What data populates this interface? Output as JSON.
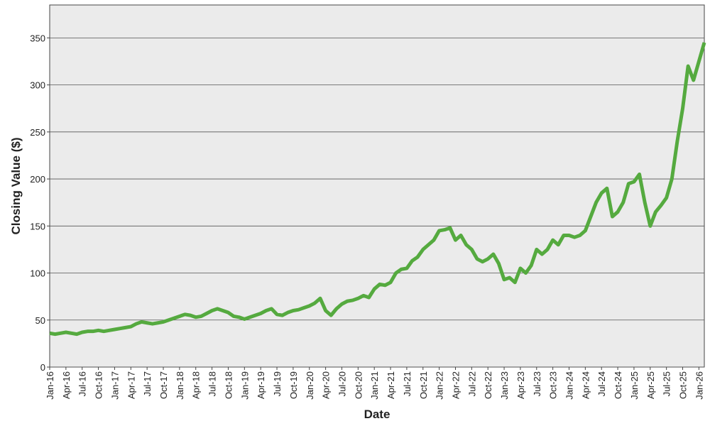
{
  "chart_data": {
    "type": "line",
    "x_label": "Date",
    "y_label": "Closing Value ($)",
    "x": [
      "2016-01",
      "2016-02",
      "2016-03",
      "2016-04",
      "2016-05",
      "2016-06",
      "2016-07",
      "2016-08",
      "2016-09",
      "2016-10",
      "2016-11",
      "2016-12",
      "2017-01",
      "2017-02",
      "2017-03",
      "2017-04",
      "2017-05",
      "2017-06",
      "2017-07",
      "2017-08",
      "2017-09",
      "2017-10",
      "2017-11",
      "2017-12",
      "2018-01",
      "2018-02",
      "2018-03",
      "2018-04",
      "2018-05",
      "2018-06",
      "2018-07",
      "2018-08",
      "2018-09",
      "2018-10",
      "2018-11",
      "2018-12",
      "2019-01",
      "2019-02",
      "2019-03",
      "2019-04",
      "2019-05",
      "2019-06",
      "2019-07",
      "2019-08",
      "2019-09",
      "2019-10",
      "2019-11",
      "2019-12",
      "2020-01",
      "2020-02",
      "2020-03",
      "2020-04",
      "2020-05",
      "2020-06",
      "2020-07",
      "2020-08",
      "2020-09",
      "2020-10",
      "2020-11",
      "2020-12",
      "2021-01",
      "2021-02",
      "2021-03",
      "2021-04",
      "2021-05",
      "2021-06",
      "2021-07",
      "2021-08",
      "2021-09",
      "2021-10",
      "2021-11",
      "2021-12",
      "2022-01",
      "2022-02",
      "2022-03",
      "2022-04",
      "2022-05",
      "2022-06",
      "2022-07",
      "2022-08",
      "2022-09",
      "2022-10",
      "2022-11",
      "2022-12",
      "2023-01",
      "2023-02",
      "2023-03",
      "2023-04",
      "2023-05",
      "2023-06",
      "2023-07",
      "2023-08",
      "2023-09",
      "2023-10",
      "2023-11",
      "2023-12",
      "2024-01",
      "2024-02",
      "2024-03",
      "2024-04",
      "2024-05",
      "2024-06",
      "2024-07",
      "2024-08",
      "2024-09",
      "2024-10",
      "2024-11",
      "2024-12",
      "2025-01",
      "2025-02",
      "2025-03",
      "2025-04",
      "2025-05",
      "2025-06",
      "2025-07",
      "2025-08",
      "2025-09",
      "2025-10",
      "2025-11",
      "2025-12",
      "2026-01",
      "2026-02"
    ],
    "series": [
      {
        "name": "Closing Value",
        "color": "#55aa3f",
        "values": [
          36,
          35,
          36,
          37,
          36,
          35,
          37,
          38,
          38,
          39,
          38,
          39,
          40,
          41,
          42,
          43,
          46,
          48,
          47,
          46,
          47,
          48,
          50,
          52,
          54,
          56,
          55,
          53,
          54,
          57,
          60,
          62,
          60,
          58,
          54,
          53,
          51,
          53,
          55,
          57,
          60,
          62,
          56,
          55,
          58,
          60,
          61,
          63,
          65,
          68,
          73,
          60,
          55,
          62,
          67,
          70,
          71,
          73,
          76,
          74,
          83,
          88,
          87,
          90,
          100,
          104,
          105,
          113,
          117,
          125,
          130,
          135,
          145,
          146,
          148,
          135,
          140,
          130,
          125,
          115,
          112,
          115,
          120,
          110,
          93,
          95,
          90,
          105,
          100,
          108,
          125,
          120,
          125,
          135,
          130,
          140,
          140,
          138,
          140,
          145,
          160,
          175,
          185,
          190,
          160,
          165,
          175,
          195,
          197,
          205,
          175,
          150,
          165,
          172,
          180,
          200,
          240,
          275,
          320,
          305,
          325,
          345
        ]
      }
    ],
    "xlim": [
      "2016-01",
      "2026-02"
    ],
    "xticks": [
      {
        "value": "2016-01",
        "label": "Jan-16"
      },
      {
        "value": "2016-04",
        "label": "Apr-16"
      },
      {
        "value": "2016-07",
        "label": "Jul-16"
      },
      {
        "value": "2016-10",
        "label": "Oct-16"
      },
      {
        "value": "2017-01",
        "label": "Jan-17"
      },
      {
        "value": "2017-04",
        "label": "Apr-17"
      },
      {
        "value": "2017-07",
        "label": "Jul-17"
      },
      {
        "value": "2017-10",
        "label": "Oct-17"
      },
      {
        "value": "2018-01",
        "label": "Jan-18"
      },
      {
        "value": "2018-04",
        "label": "Apr-18"
      },
      {
        "value": "2018-07",
        "label": "Jul-18"
      },
      {
        "value": "2018-10",
        "label": "Oct-18"
      },
      {
        "value": "2019-01",
        "label": "Jan-19"
      },
      {
        "value": "2019-04",
        "label": "Apr-19"
      },
      {
        "value": "2019-07",
        "label": "Jul-19"
      },
      {
        "value": "2019-10",
        "label": "Oct-19"
      },
      {
        "value": "2020-01",
        "label": "Jan-20"
      },
      {
        "value": "2020-04",
        "label": "Apr-20"
      },
      {
        "value": "2020-07",
        "label": "Jul-20"
      },
      {
        "value": "2020-10",
        "label": "Oct-20"
      },
      {
        "value": "2021-01",
        "label": "Jan-21"
      },
      {
        "value": "2021-04",
        "label": "Apr-21"
      },
      {
        "value": "2021-07",
        "label": "Jul-21"
      },
      {
        "value": "2021-10",
        "label": "Oct-21"
      },
      {
        "value": "2022-01",
        "label": "Jan-22"
      },
      {
        "value": "2022-04",
        "label": "Apr-22"
      },
      {
        "value": "2022-07",
        "label": "Jul-22"
      },
      {
        "value": "2022-10",
        "label": "Oct-22"
      },
      {
        "value": "2023-01",
        "label": "Jan-23"
      },
      {
        "value": "2023-04",
        "label": "Apr-23"
      },
      {
        "value": "2023-07",
        "label": "Jul-23"
      },
      {
        "value": "2023-10",
        "label": "Oct-23"
      },
      {
        "value": "2024-01",
        "label": "Jan-24"
      },
      {
        "value": "2024-04",
        "label": "Apr-24"
      },
      {
        "value": "2024-07",
        "label": "Jul-24"
      },
      {
        "value": "2024-10",
        "label": "Oct-24"
      },
      {
        "value": "2025-01",
        "label": "Jan-25"
      },
      {
        "value": "2025-04",
        "label": "Apr-25"
      },
      {
        "value": "2025-07",
        "label": "Jul-25"
      },
      {
        "value": "2025-10",
        "label": "Oct-25"
      },
      {
        "value": "2026-01",
        "label": "Jan-26"
      }
    ],
    "ylim": [
      0,
      385
    ],
    "yticks": [
      0,
      50,
      100,
      150,
      200,
      250,
      300,
      350
    ],
    "grid": true
  }
}
